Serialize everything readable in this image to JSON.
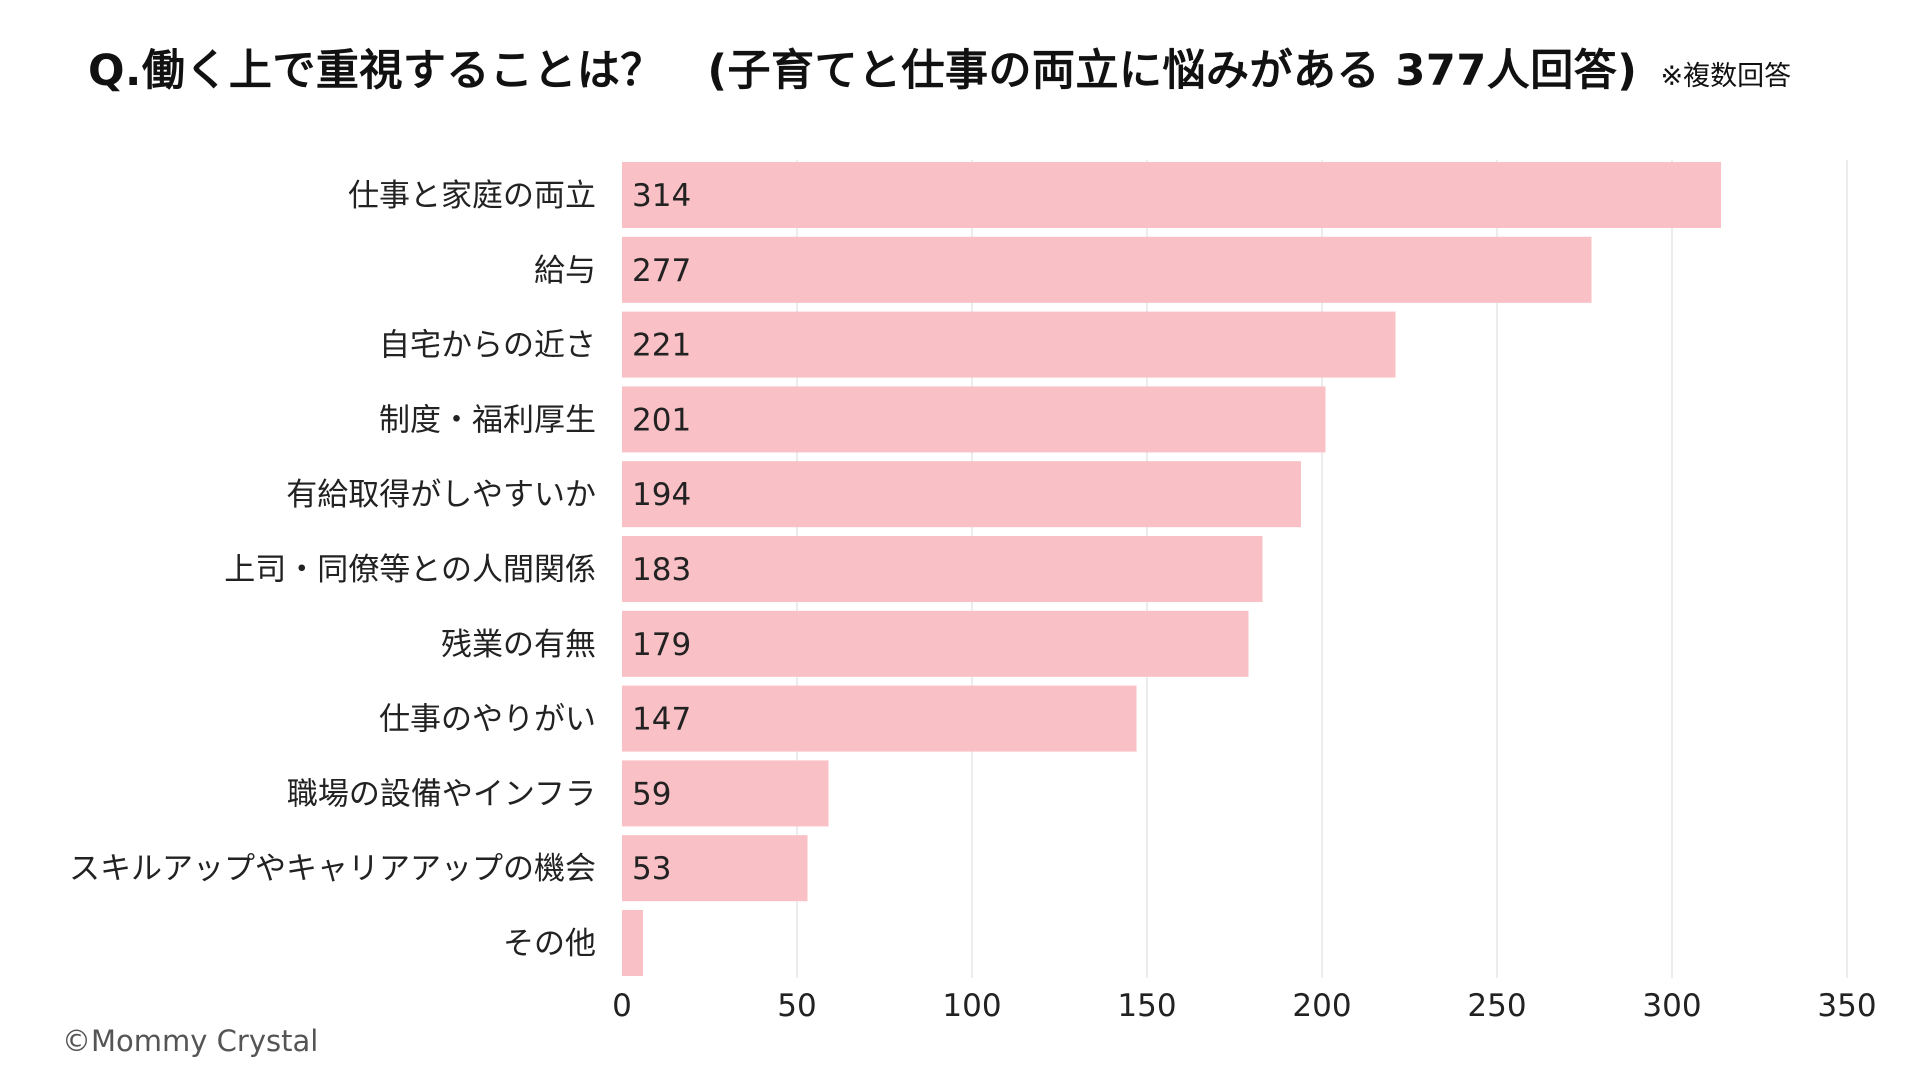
{
  "title": "Q.働く上で重視することは？　(子育てと仕事の両立に悩みがある 377人回答)",
  "title_note": "※複数回答",
  "credit": "©Mommy Crystal",
  "colors": {
    "bar": "#f9c0c6",
    "grid": "#d9d9d9",
    "text": "#222222"
  },
  "chart_data": {
    "type": "bar",
    "orientation": "horizontal",
    "categories": [
      "仕事と家庭の両立",
      "給与",
      "自宅からの近さ",
      "制度・福利厚生",
      "有給取得がしやすいか",
      "上司・同僚等との人間関係",
      "残業の有無",
      "仕事のやりがい",
      "職場の設備やインフラ",
      "スキルアップやキャリアアップの機会",
      "その他"
    ],
    "values": [
      314,
      277,
      221,
      201,
      194,
      183,
      179,
      147,
      59,
      53,
      6
    ],
    "value_labels": [
      "314",
      "277",
      "221",
      "201",
      "194",
      "183",
      "179",
      "147",
      "59",
      "53",
      ""
    ],
    "xlim": [
      0,
      350
    ],
    "xticks": [
      0,
      50,
      100,
      150,
      200,
      250,
      300,
      350
    ],
    "grid": true
  }
}
